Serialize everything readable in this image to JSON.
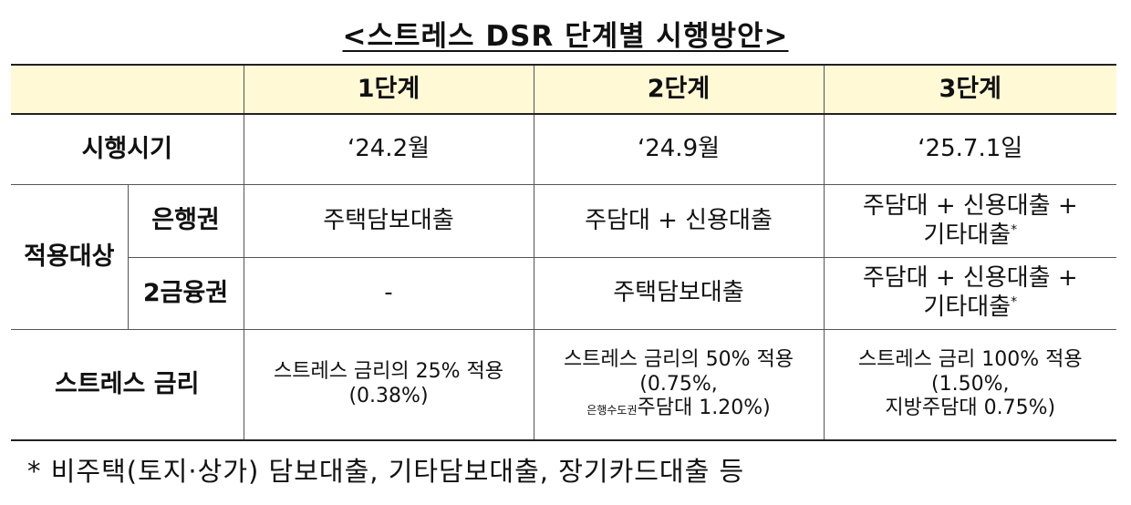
{
  "title": "<스트레스 DSR 단계별 시행방안>",
  "header": {
    "stage1": "1단계",
    "stage2": "2단계",
    "stage3": "3단계"
  },
  "rows": {
    "timing": {
      "label": "시행시기",
      "stage1": "‘24.2월",
      "stage2": "‘24.9월",
      "stage3": "‘25.7.1일"
    },
    "scope_label": "적용대상",
    "bank": {
      "label": "은행권",
      "stage1": "주택담보대출",
      "stage2": "주담대 + 신용대출",
      "stage3_line1": "주담대 + 신용대출 +",
      "stage3_line2": "기타대출",
      "stage3_mark": "*"
    },
    "second": {
      "label": "2금융권",
      "stage1": "-",
      "stage2": "주택담보대출",
      "stage3_line1": "주담대 + 신용대출 +",
      "stage3_line2": "기타대출",
      "stage3_mark": "*"
    },
    "rate": {
      "label": "스트레스 금리",
      "stage1_line1": "스트레스 금리의 25% 적용",
      "stage1_line2": "(0.38%)",
      "stage2_line1": "스트레스 금리의 50% 적용",
      "stage2_line2": "(0.75%,",
      "stage2_prefix": "은행수도권",
      "stage2_line3": "주담대 1.20%)",
      "stage3_line1": "스트레스 금리 100% 적용",
      "stage3_line2": "(1.50%,",
      "stage3_line3": "지방주담대 0.75%)"
    }
  },
  "footnote": "* 비주택(토지·상가) 담보대출, 기타담보대출, 장기카드대출 등"
}
